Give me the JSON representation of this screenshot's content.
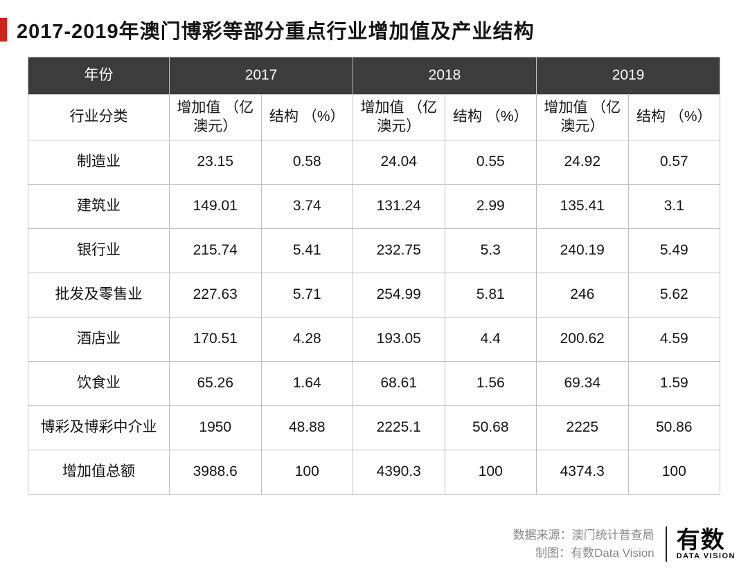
{
  "title": "2017-2019年澳门博彩等部分重点行业增加值及产业结构",
  "colors": {
    "accent": "#c6261e",
    "header_bg": "#3c3c3c",
    "header_fg": "#ffffff",
    "border": "#bfbfbf",
    "text": "#141414",
    "footer_text": "#888888"
  },
  "header": {
    "year_label": "年份",
    "years": [
      "2017",
      "2018",
      "2019"
    ],
    "industry_label": "行业分类",
    "value_label": "增加值\n（亿澳元）",
    "ratio_label": "结构\n（%）"
  },
  "rows": [
    {
      "industry": "制造业",
      "v2017": "23.15",
      "r2017": "0.58",
      "v2018": "24.04",
      "r2018": "0.55",
      "v2019": "24.92",
      "r2019": "0.57",
      "highlight": false
    },
    {
      "industry": "建筑业",
      "v2017": "149.01",
      "r2017": "3.74",
      "v2018": "131.24",
      "r2018": "2.99",
      "v2019": "135.41",
      "r2019": "3.1",
      "highlight": false
    },
    {
      "industry": "银行业",
      "v2017": "215.74",
      "r2017": "5.41",
      "v2018": "232.75",
      "r2018": "5.3",
      "v2019": "240.19",
      "r2019": "5.49",
      "highlight": false
    },
    {
      "industry": "批发及零售业",
      "v2017": "227.63",
      "r2017": "5.71",
      "v2018": "254.99",
      "r2018": "5.81",
      "v2019": "246",
      "r2019": "5.62",
      "highlight": false
    },
    {
      "industry": "酒店业",
      "v2017": "170.51",
      "r2017": "4.28",
      "v2018": "193.05",
      "r2018": "4.4",
      "v2019": "200.62",
      "r2019": "4.59",
      "highlight": false
    },
    {
      "industry": "饮食业",
      "v2017": "65.26",
      "r2017": "1.64",
      "v2018": "68.61",
      "r2018": "1.56",
      "v2019": "69.34",
      "r2019": "1.59",
      "highlight": false
    },
    {
      "industry": "博彩及博彩中介业",
      "v2017": "1950",
      "r2017": "48.88",
      "v2018": "2225.1",
      "r2018": "50.68",
      "v2019": "2225",
      "r2019": "50.86",
      "highlight": true
    },
    {
      "industry": "增加值总额",
      "v2017": "3988.6",
      "r2017": "100",
      "v2018": "4390.3",
      "r2018": "100",
      "v2019": "4374.3",
      "r2019": "100",
      "highlight": false
    }
  ],
  "footer": {
    "source_label": "数据来源：澳门统计普查局",
    "credit_label": "制图：有数Data Vision",
    "logo_main": "有数",
    "logo_sub": "DATA VISION"
  }
}
